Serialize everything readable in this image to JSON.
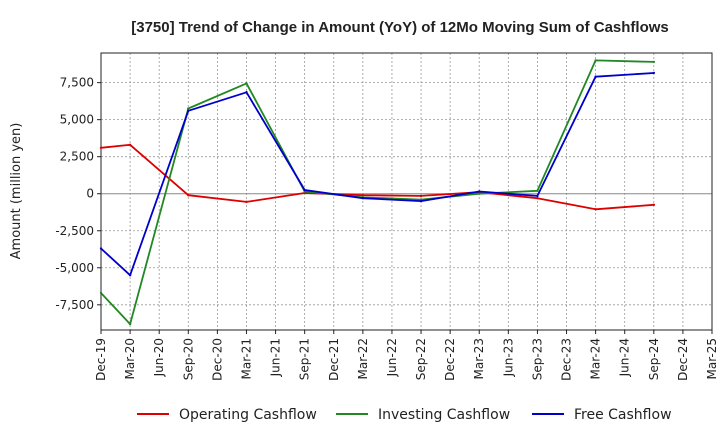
{
  "chart_data": {
    "type": "line",
    "title": "[3750]  Trend of Change in Amount (YoY) of 12Mo Moving Sum of Cashflows",
    "xlabel": "",
    "ylabel": "Amount (million yen)",
    "ylim": [
      -9200,
      9500
    ],
    "yticks": [
      -7500,
      -5000,
      -2500,
      0,
      2500,
      5000,
      7500
    ],
    "ytick_labels": [
      "-7,500",
      "-5,000",
      "-2,500",
      "0",
      "2,500",
      "5,000",
      "7,500"
    ],
    "grid": true,
    "legend_position": "bottom",
    "categories": [
      "Dec-19",
      "Mar-20",
      "Jun-20",
      "Sep-20",
      "Dec-20",
      "Mar-21",
      "Jun-21",
      "Sep-21",
      "Dec-21",
      "Mar-22",
      "Jun-22",
      "Sep-22",
      "Dec-22",
      "Mar-23",
      "Jun-23",
      "Sep-23",
      "Dec-23",
      "Mar-24",
      "Jun-24",
      "Sep-24",
      "Dec-24",
      "Mar-25"
    ],
    "series": [
      {
        "name": "Operating Cashflow",
        "color": "#dd0000",
        "values": [
          3100,
          3300,
          null,
          -100,
          null,
          -550,
          null,
          50,
          null,
          -100,
          null,
          -150,
          null,
          100,
          null,
          -300,
          null,
          -1050,
          null,
          -750,
          null,
          null
        ]
      },
      {
        "name": "Investing Cashflow",
        "color": "#228822",
        "values": [
          -6700,
          -8800,
          null,
          5750,
          null,
          7450,
          null,
          150,
          null,
          -250,
          null,
          -400,
          null,
          0,
          null,
          200,
          null,
          9000,
          null,
          8900,
          null,
          null
        ]
      },
      {
        "name": "Free Cashflow",
        "color": "#0000cc",
        "values": [
          -3700,
          -5500,
          null,
          5600,
          null,
          6850,
          null,
          250,
          null,
          -300,
          null,
          -500,
          null,
          150,
          null,
          -150,
          null,
          7900,
          null,
          8150,
          null,
          null
        ]
      }
    ]
  }
}
